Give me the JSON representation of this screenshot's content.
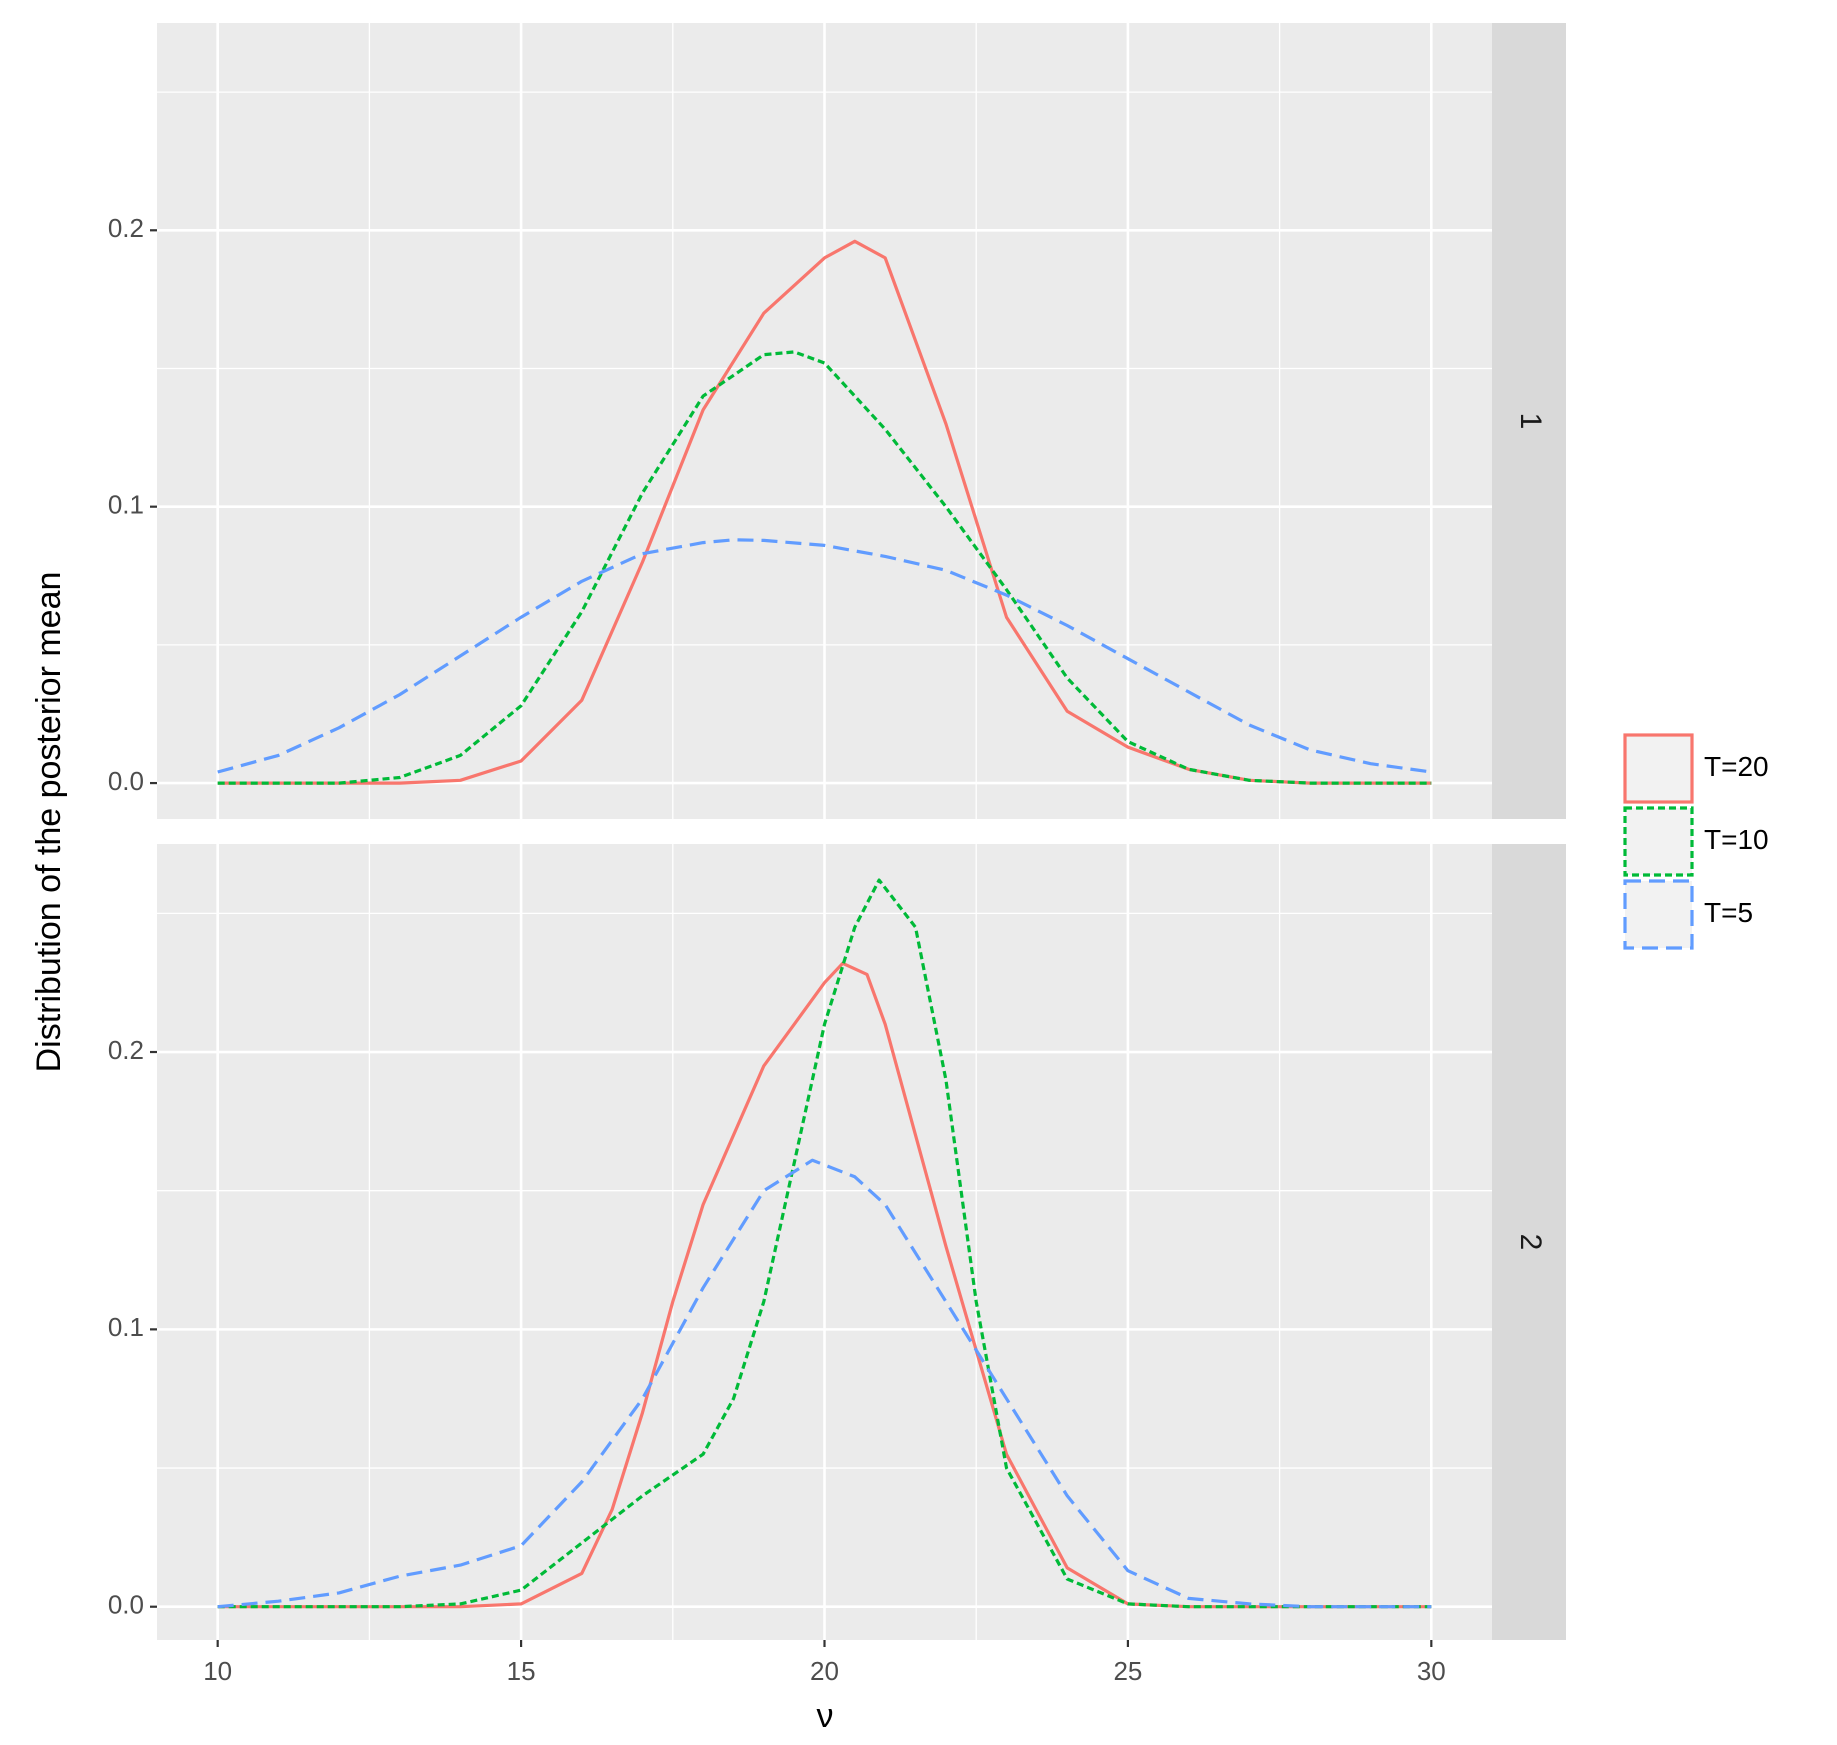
{
  "chart_data": {
    "type": "line",
    "xlabel": "ν",
    "ylabel": "Distribution of the posterior mean",
    "xlim": [
      9,
      31
    ],
    "x_ticks": [
      "10",
      "15",
      "20",
      "25",
      "30"
    ],
    "x_tick_values": [
      10,
      15,
      20,
      25,
      30
    ],
    "grid": true,
    "legend_position": "right",
    "legend": [
      {
        "label": "T=20",
        "color": "#F8766D",
        "linetype": "solid"
      },
      {
        "label": "T=10",
        "color": "#00BA38",
        "linetype": "dotted"
      },
      {
        "label": "T=5",
        "color": "#619CFF",
        "linetype": "dashed"
      }
    ],
    "panels": [
      {
        "strip": "1",
        "ylim": [
          -0.013,
          0.275
        ],
        "y_ticks": [
          "0.0",
          "0.1",
          "0.2"
        ],
        "y_tick_values": [
          0.0,
          0.1,
          0.2
        ],
        "series": [
          {
            "name": "T=20",
            "color": "#F8766D",
            "dash": "solid",
            "x": [
              10,
              13,
              14,
              15,
              16,
              17,
              18,
              19,
              20,
              20.5,
              21,
              22,
              23,
              24,
              25,
              26,
              27,
              28,
              30
            ],
            "y": [
              0,
              0,
              0.001,
              0.008,
              0.03,
              0.08,
              0.135,
              0.17,
              0.19,
              0.196,
              0.19,
              0.13,
              0.06,
              0.026,
              0.013,
              0.005,
              0.001,
              0,
              0
            ]
          },
          {
            "name": "T=10",
            "color": "#00BA38",
            "dash": "dotted",
            "x": [
              10,
              12,
              13,
              14,
              15,
              16,
              17,
              18,
              19,
              19.5,
              20,
              21,
              22,
              23,
              24,
              25,
              26,
              27,
              28,
              30
            ],
            "y": [
              0,
              0,
              0.002,
              0.01,
              0.028,
              0.062,
              0.105,
              0.14,
              0.155,
              0.156,
              0.152,
              0.128,
              0.1,
              0.07,
              0.038,
              0.015,
              0.005,
              0.001,
              0,
              0
            ]
          },
          {
            "name": "T=5",
            "color": "#619CFF",
            "dash": "dashed",
            "x": [
              10,
              11,
              12,
              13,
              14,
              15,
              16,
              17,
              18,
              18.5,
              19,
              20,
              21,
              22,
              23,
              24,
              25,
              26,
              27,
              28,
              29,
              30
            ],
            "y": [
              0.004,
              0.01,
              0.02,
              0.032,
              0.046,
              0.06,
              0.073,
              0.083,
              0.087,
              0.088,
              0.0878,
              0.086,
              0.082,
              0.077,
              0.068,
              0.057,
              0.045,
              0.033,
              0.021,
              0.012,
              0.007,
              0.004
            ]
          }
        ]
      },
      {
        "strip": "2",
        "ylim": [
          -0.012,
          0.275
        ],
        "y_ticks": [
          "0.0",
          "0.1",
          "0.2"
        ],
        "y_tick_values": [
          0.0,
          0.1,
          0.2
        ],
        "series": [
          {
            "name": "T=20",
            "color": "#F8766D",
            "dash": "solid",
            "x": [
              10,
              14,
              15,
              16,
              16.5,
              17,
              17.5,
              18,
              19,
              19.5,
              20,
              20.3,
              20.7,
              21,
              22,
              23,
              24,
              25,
              26,
              30
            ],
            "y": [
              0,
              0,
              0.001,
              0.012,
              0.035,
              0.07,
              0.11,
              0.145,
              0.195,
              0.21,
              0.225,
              0.232,
              0.228,
              0.21,
              0.13,
              0.055,
              0.014,
              0.001,
              0,
              0
            ]
          },
          {
            "name": "T=10",
            "color": "#00BA38",
            "dash": "dotted",
            "x": [
              10,
              13,
              14,
              15,
              16,
              17,
              18,
              18.5,
              19,
              19.5,
              20,
              20.5,
              20.9,
              21.5,
              22,
              22.5,
              23,
              24,
              25,
              26,
              30
            ],
            "y": [
              0,
              0,
              0.001,
              0.006,
              0.023,
              0.04,
              0.055,
              0.075,
              0.11,
              0.16,
              0.21,
              0.245,
              0.262,
              0.245,
              0.19,
              0.11,
              0.05,
              0.01,
              0.001,
              0,
              0
            ]
          },
          {
            "name": "T=5",
            "color": "#619CFF",
            "dash": "dashed",
            "x": [
              10,
              11,
              12,
              13,
              14,
              15,
              16,
              17,
              18,
              19,
              19.8,
              20.5,
              21,
              22,
              23,
              24,
              25,
              26,
              27,
              28,
              30
            ],
            "y": [
              0,
              0.002,
              0.005,
              0.011,
              0.015,
              0.022,
              0.045,
              0.075,
              0.115,
              0.15,
              0.161,
              0.155,
              0.145,
              0.11,
              0.075,
              0.04,
              0.013,
              0.003,
              0.001,
              0,
              0
            ]
          }
        ]
      }
    ]
  }
}
